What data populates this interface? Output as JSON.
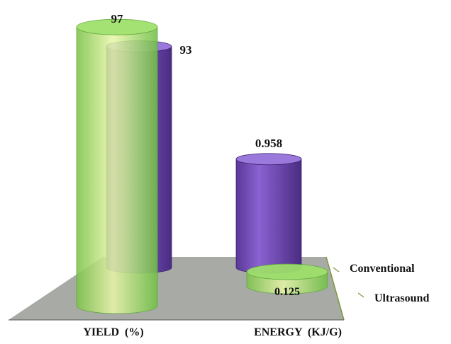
{
  "chart_data": {
    "type": "bar",
    "style": "3d-cylinder",
    "categories": [
      "YIELD  (%)",
      "ENERGY  (KJ/G)"
    ],
    "series": [
      {
        "name": "Conventional",
        "values": [
          93,
          0.958
        ],
        "value_labels": [
          "93",
          "0.958"
        ],
        "color": "#7b4fc0"
      },
      {
        "name": "Ultrasound",
        "values": [
          97,
          0.125
        ],
        "value_labels": [
          "97",
          "0.125"
        ],
        "color": "#7ed957"
      }
    ],
    "title": "",
    "xlabel": "",
    "ylabel": "",
    "grid": false,
    "legend": "depth-axis-right",
    "floor_color": "#a8aaa6"
  }
}
